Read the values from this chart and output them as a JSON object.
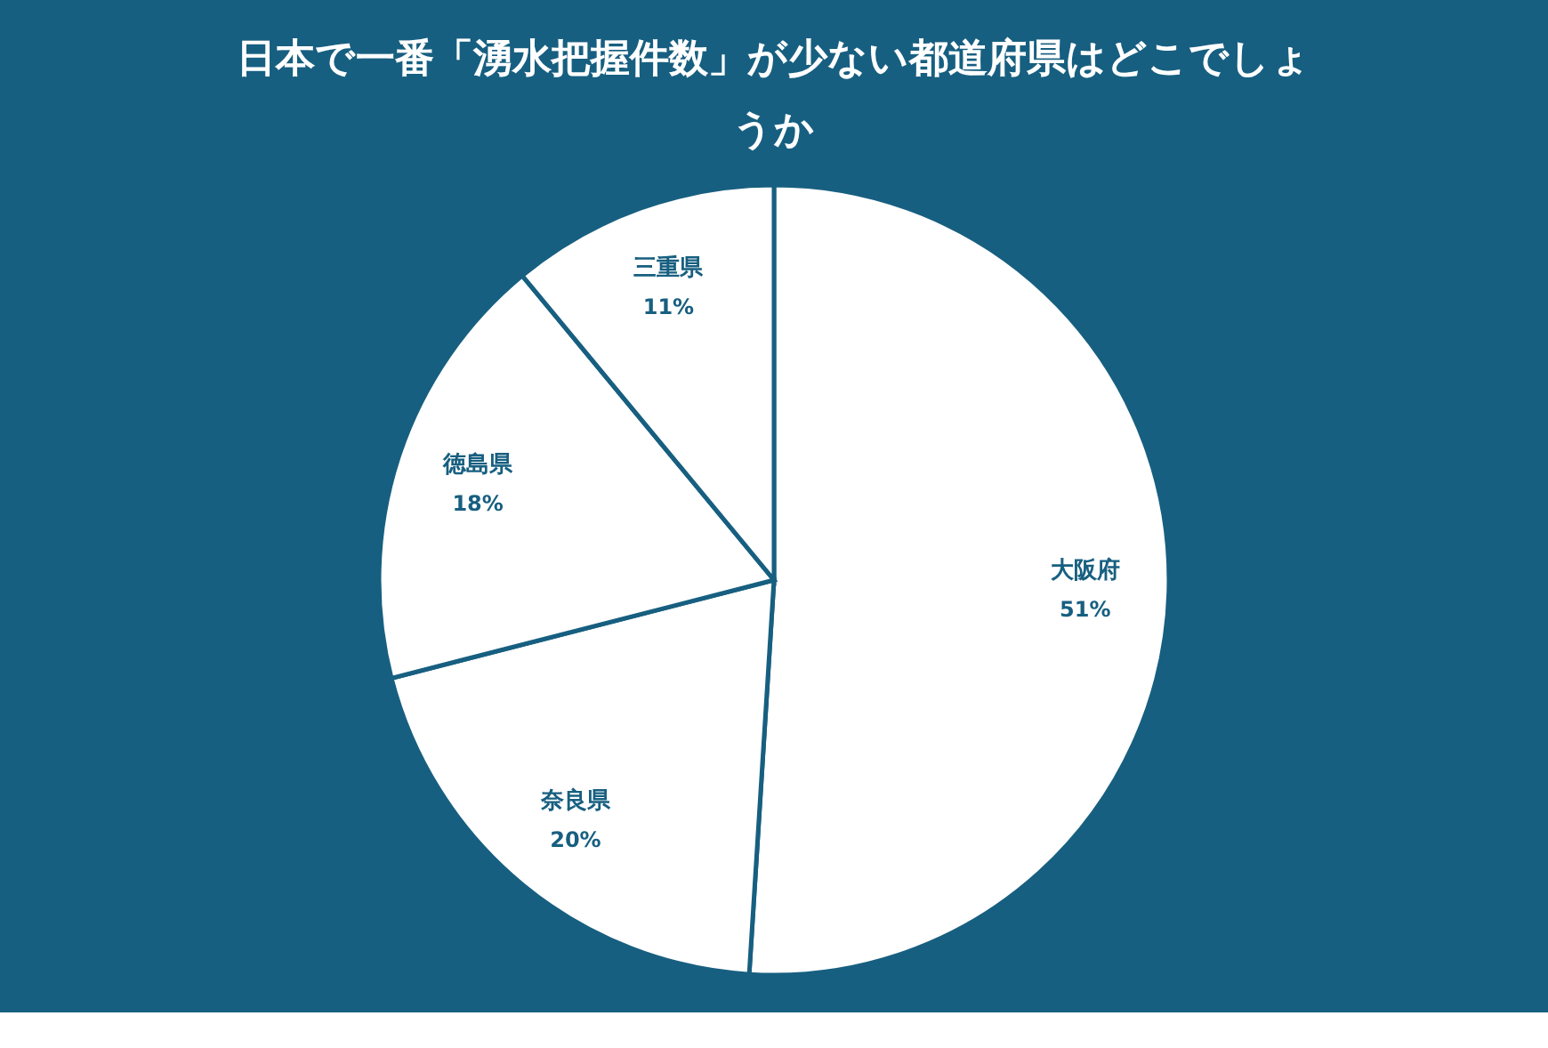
{
  "chart_data": {
    "type": "pie",
    "title": "日本で一番「湧水把握件数」が少ない都道府県はどこでしょうか",
    "categories": [
      "大阪府",
      "奈良県",
      "徳島県",
      "三重県"
    ],
    "values": [
      51,
      20,
      18,
      11
    ],
    "colors": [
      "#ffffff",
      "#ffffff",
      "#ffffff",
      "#ffffff"
    ],
    "value_labels": [
      "51%",
      "20%",
      "18%",
      "11%"
    ],
    "legend": false
  }
}
